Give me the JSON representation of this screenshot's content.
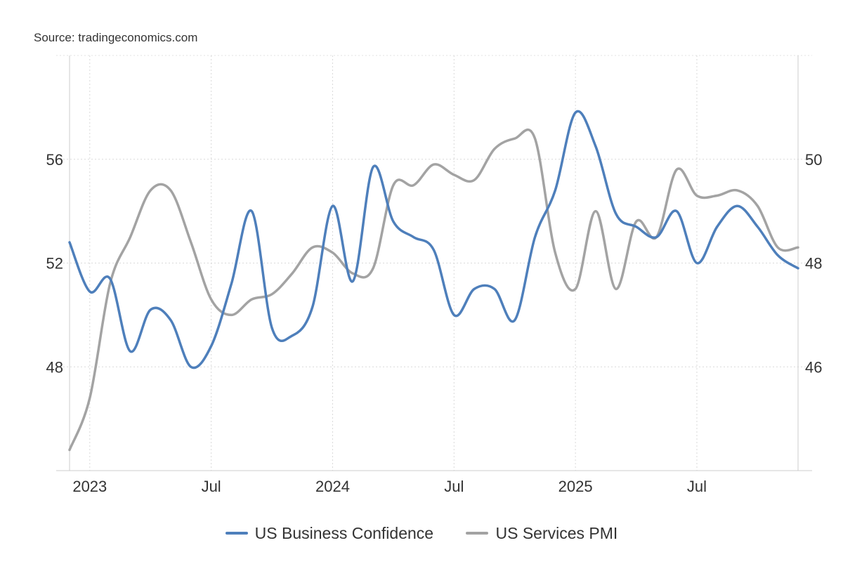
{
  "source": "Source: tradingeconomics.com",
  "chart_data": {
    "type": "line",
    "title": "",
    "xlabel": "",
    "ylabel": "",
    "x_ticks": [
      "2023",
      "Jul",
      "2024",
      "Jul",
      "2025",
      "Jul"
    ],
    "x_tick_dates": [
      "2023-01",
      "2023-07",
      "2024-01",
      "2024-07",
      "2025-01",
      "2025-07"
    ],
    "xlim": [
      "2022-12",
      "2025-12"
    ],
    "y_left_ticks": [
      48,
      52,
      56
    ],
    "y_left_lim": [
      44,
      60
    ],
    "y_right_ticks": [
      46,
      48,
      50
    ],
    "y_right_lim": [
      44,
      52
    ],
    "grid": true,
    "legend_position": "bottom-center",
    "series": [
      {
        "name": "US Business Confidence",
        "axis": "left",
        "color": "#4e7fbb",
        "x": [
          "2022-12",
          "2023-01",
          "2023-02",
          "2023-03",
          "2023-04",
          "2023-05",
          "2023-06",
          "2023-07",
          "2023-08",
          "2023-09",
          "2023-10",
          "2023-11",
          "2023-12",
          "2024-01",
          "2024-02",
          "2024-03",
          "2024-04",
          "2024-05",
          "2024-06",
          "2024-07",
          "2024-08",
          "2024-09",
          "2024-10",
          "2024-11",
          "2024-12",
          "2025-01",
          "2025-02",
          "2025-03",
          "2025-04",
          "2025-05",
          "2025-06",
          "2025-07",
          "2025-08",
          "2025-09",
          "2025-10",
          "2025-11",
          "2025-12"
        ],
        "values": [
          52.8,
          50.9,
          51.4,
          48.6,
          50.2,
          49.8,
          48.0,
          48.8,
          51.2,
          54.0,
          49.5,
          49.2,
          50.3,
          54.2,
          51.3,
          55.7,
          53.6,
          53.0,
          52.5,
          50.0,
          51.0,
          51.0,
          49.8,
          53.0,
          54.8,
          57.8,
          56.5,
          53.9,
          53.4,
          53.0,
          54.0,
          52.0,
          53.4,
          54.2,
          53.4,
          52.3,
          51.8
        ]
      },
      {
        "name": "US Services PMI",
        "axis": "right",
        "color": "#a3a3a3",
        "x": [
          "2022-12",
          "2023-01",
          "2023-02",
          "2023-03",
          "2023-04",
          "2023-05",
          "2023-06",
          "2023-07",
          "2023-08",
          "2023-09",
          "2023-10",
          "2023-11",
          "2023-12",
          "2024-01",
          "2024-02",
          "2024-03",
          "2024-04",
          "2024-05",
          "2024-06",
          "2024-07",
          "2024-08",
          "2024-09",
          "2024-10",
          "2024-11",
          "2024-12",
          "2025-01",
          "2025-02",
          "2025-03",
          "2025-04",
          "2025-05",
          "2025-06",
          "2025-07",
          "2025-08",
          "2025-09",
          "2025-10",
          "2025-11",
          "2025-12"
        ],
        "values": [
          44.4,
          45.4,
          47.6,
          48.5,
          49.4,
          49.4,
          48.4,
          47.3,
          47.0,
          47.3,
          47.4,
          47.8,
          48.3,
          48.2,
          47.8,
          47.9,
          49.5,
          49.5,
          49.9,
          49.7,
          49.6,
          50.2,
          50.4,
          50.4,
          48.2,
          47.5,
          49.0,
          47.5,
          48.8,
          48.5,
          49.8,
          49.3,
          49.3,
          49.4,
          49.1,
          48.3,
          48.3
        ]
      }
    ]
  }
}
